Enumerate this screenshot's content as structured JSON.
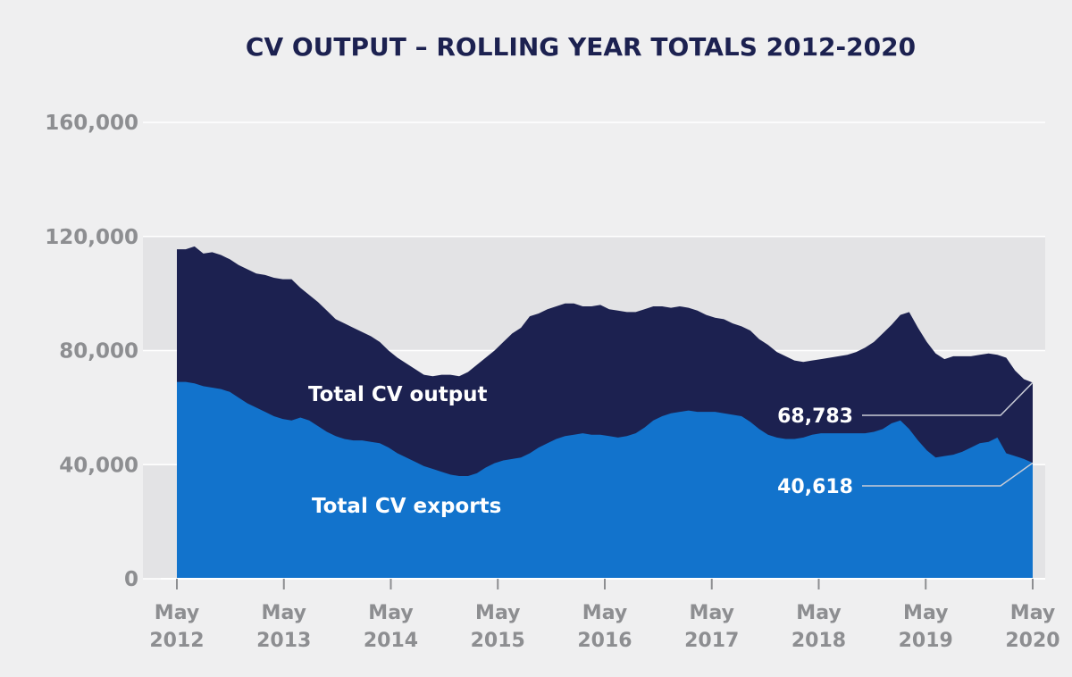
{
  "chart_data": {
    "type": "area",
    "title": "CV OUTPUT – ROLLING YEAR TOTALS 2012-2020",
    "xlabel": "",
    "ylabel": "",
    "ylim": [
      0,
      160000
    ],
    "y_ticks": [
      "160,000",
      "120,000",
      "80,000",
      "40,000",
      "0"
    ],
    "y_tick_values": [
      160000,
      120000,
      80000,
      40000,
      0
    ],
    "x_ticks": [
      {
        "month": "May",
        "year": "2012"
      },
      {
        "month": "May",
        "year": "2013"
      },
      {
        "month": "May",
        "year": "2014"
      },
      {
        "month": "May",
        "year": "2015"
      },
      {
        "month": "May",
        "year": "2016"
      },
      {
        "month": "May",
        "year": "2017"
      },
      {
        "month": "May",
        "year": "2018"
      },
      {
        "month": "May",
        "year": "2019"
      },
      {
        "month": "May",
        "year": "2020"
      }
    ],
    "x_start": "2012-05",
    "x_end": "2020-05",
    "grid": true,
    "series": [
      {
        "name": "Total CV output",
        "color": "#1c2150",
        "values": [
          115500,
          115500,
          116500,
          114000,
          114500,
          113500,
          112000,
          110000,
          108500,
          107000,
          106500,
          105500,
          105000,
          105000,
          102000,
          99500,
          97000,
          94000,
          91000,
          89500,
          88000,
          86500,
          85000,
          83000,
          80000,
          77500,
          75500,
          73500,
          71500,
          71000,
          71500,
          71500,
          71000,
          72500,
          75000,
          77500,
          80000,
          83000,
          86000,
          88000,
          92000,
          93000,
          94500,
          95500,
          96500,
          96500,
          95500,
          95500,
          96000,
          94500,
          94000,
          93500,
          93500,
          94500,
          95500,
          95500,
          95000,
          95500,
          95000,
          94000,
          92500,
          91500,
          91000,
          89500,
          88500,
          87000,
          84000,
          82000,
          79500,
          78000,
          76500,
          76000,
          76500,
          77000,
          77500,
          78000,
          78500,
          79500,
          81000,
          83000,
          86000,
          89000,
          92500,
          93500,
          88000,
          83000,
          79000,
          77000,
          78000,
          78000,
          78000,
          78500,
          79000,
          78500,
          77500,
          73000,
          70000,
          68783
        ],
        "final_label": "68,783"
      },
      {
        "name": "Total CV exports",
        "color": "#1273cc",
        "values": [
          69000,
          69000,
          68500,
          67500,
          67000,
          66500,
          65500,
          63500,
          61500,
          60000,
          58500,
          57000,
          56000,
          55500,
          56500,
          55500,
          53500,
          51500,
          50000,
          49000,
          48500,
          48500,
          48000,
          47500,
          46000,
          44000,
          42500,
          41000,
          39500,
          38500,
          37500,
          36500,
          36000,
          36000,
          37000,
          39000,
          40500,
          41500,
          42000,
          42500,
          44000,
          46000,
          47500,
          49000,
          50000,
          50500,
          51000,
          50500,
          50500,
          50000,
          49500,
          50000,
          51000,
          53000,
          55500,
          57000,
          58000,
          58500,
          59000,
          58500,
          58500,
          58500,
          58000,
          57500,
          57000,
          55000,
          52500,
          50500,
          49500,
          49000,
          49000,
          49500,
          50500,
          51000,
          51000,
          51000,
          51000,
          51000,
          51000,
          51500,
          52500,
          54500,
          55500,
          52500,
          48500,
          45000,
          42500,
          43000,
          43500,
          44500,
          46000,
          47500,
          48000,
          49500,
          44000,
          43000,
          42000,
          40618
        ],
        "final_label": "40,618"
      }
    ]
  }
}
